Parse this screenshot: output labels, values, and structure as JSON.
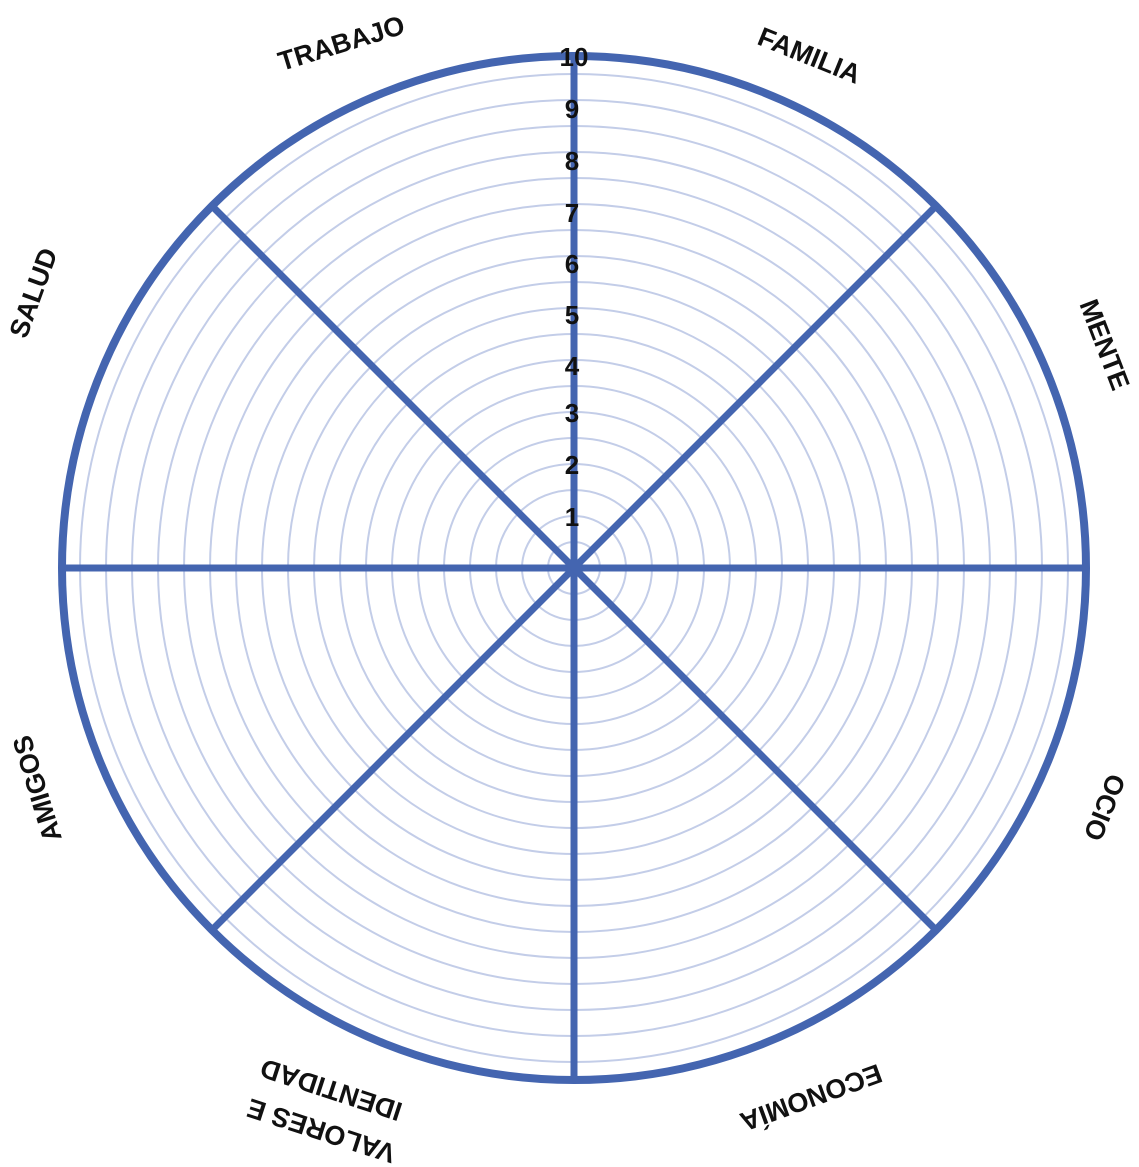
{
  "scale": {
    "levels": [
      "1",
      "2",
      "3",
      "4",
      "5",
      "6",
      "7",
      "8",
      "9",
      "10"
    ]
  },
  "categories": [
    {
      "id": "familia",
      "label": "FAMILIA"
    },
    {
      "id": "mente",
      "label": "MENTE"
    },
    {
      "id": "ocio",
      "label": "OCIO"
    },
    {
      "id": "economia",
      "label": "ECONOMÍA"
    },
    {
      "id": "valores",
      "label_lines": [
        "VALORES E",
        "IDENTIDAD"
      ]
    },
    {
      "id": "amigos",
      "label": "AMIGOS"
    },
    {
      "id": "salud",
      "label": "SALUD"
    },
    {
      "id": "trabajo",
      "label": "TRABAJO"
    }
  ],
  "colors": {
    "spoke": "#4465b0",
    "ring": "#c3cde8",
    "text": "#111111"
  }
}
